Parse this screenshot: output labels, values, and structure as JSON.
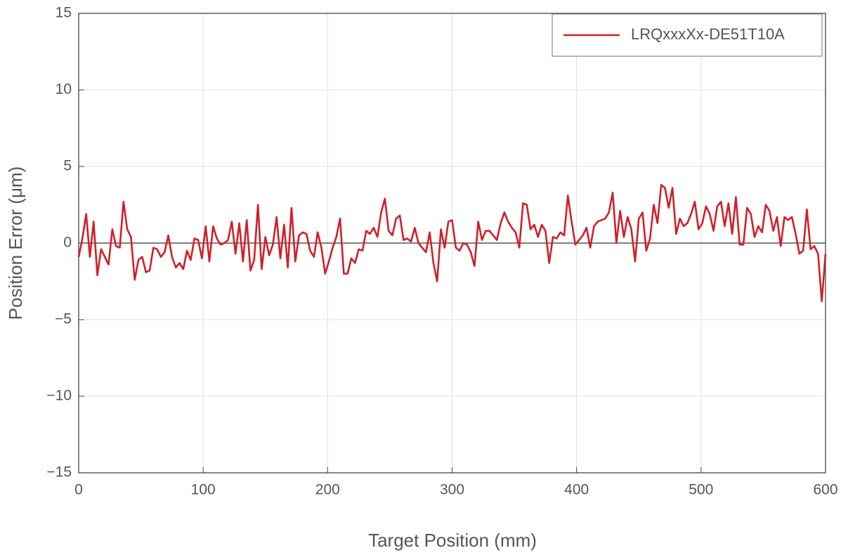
{
  "chart_data": {
    "type": "line",
    "xlabel": "Target Position (mm)",
    "ylabel": "Position Error (μm)",
    "x": [
      0,
      3,
      6,
      9,
      12,
      15,
      18,
      21,
      24,
      27,
      30,
      33,
      36,
      39,
      42,
      45,
      48,
      51,
      54,
      57,
      60,
      63,
      66,
      69,
      72,
      75,
      78,
      81,
      84,
      87,
      90,
      93,
      96,
      99,
      102,
      105,
      108,
      111,
      114,
      117,
      120,
      123,
      126,
      129,
      132,
      135,
      138,
      141,
      144,
      147,
      150,
      153,
      156,
      159,
      162,
      165,
      168,
      171,
      174,
      177,
      180,
      183,
      186,
      189,
      192,
      195,
      198,
      201,
      204,
      207,
      210,
      213,
      216,
      219,
      222,
      225,
      228,
      231,
      234,
      237,
      240,
      243,
      246,
      249,
      252,
      255,
      258,
      261,
      264,
      267,
      270,
      273,
      276,
      279,
      282,
      285,
      288,
      291,
      294,
      297,
      300,
      303,
      306,
      309,
      312,
      315,
      318,
      321,
      324,
      327,
      330,
      333,
      336,
      339,
      342,
      345,
      348,
      351,
      354,
      357,
      360,
      363,
      366,
      369,
      372,
      375,
      378,
      381,
      384,
      387,
      390,
      393,
      396,
      399,
      402,
      405,
      408,
      411,
      414,
      417,
      420,
      423,
      426,
      429,
      432,
      435,
      438,
      441,
      444,
      447,
      450,
      453,
      456,
      459,
      462,
      465,
      468,
      471,
      474,
      477,
      480,
      483,
      486,
      489,
      492,
      495,
      498,
      501,
      504,
      507,
      510,
      513,
      516,
      519,
      522,
      525,
      528,
      531,
      534,
      537,
      540,
      543,
      546,
      549,
      552,
      555,
      558,
      561,
      564,
      567,
      570,
      573,
      576,
      579,
      582,
      585,
      588,
      591,
      594,
      597,
      600
    ],
    "series": [
      {
        "name": "LRQxxxXx-DE51T10A",
        "color": "#d0202a",
        "values": [
          -0.9,
          0.3,
          1.9,
          -0.9,
          1.4,
          -2.1,
          -0.4,
          -0.9,
          -1.4,
          0.9,
          -0.2,
          -0.3,
          2.7,
          0.9,
          0.4,
          -2.4,
          -1.1,
          -0.9,
          -1.9,
          -1.8,
          -0.3,
          -0.4,
          -0.9,
          -0.6,
          0.5,
          -0.9,
          -1.6,
          -1.3,
          -1.7,
          -0.5,
          -1.1,
          0.3,
          0.2,
          -1.0,
          1.1,
          -1.2,
          1.1,
          0.3,
          -0.1,
          0.0,
          0.2,
          1.4,
          -0.7,
          1.3,
          -1.2,
          1.5,
          -1.8,
          -1.1,
          2.5,
          -1.7,
          0.4,
          -0.8,
          -0.1,
          1.7,
          -1.0,
          1.2,
          -1.6,
          2.3,
          -1.2,
          0.5,
          0.7,
          0.6,
          -0.5,
          -0.9,
          0.7,
          -0.3,
          -2.0,
          -1.2,
          -0.3,
          0.4,
          1.6,
          -2.0,
          -2.0,
          -1.0,
          -1.3,
          -0.4,
          -0.5,
          0.8,
          0.6,
          1.0,
          0.4,
          2.0,
          2.9,
          0.8,
          0.5,
          1.6,
          1.8,
          0.2,
          0.3,
          0.1,
          1.0,
          0.0,
          -0.3,
          -0.6,
          0.7,
          -1.3,
          -2.5,
          0.9,
          -0.3,
          1.4,
          1.5,
          -0.3,
          -0.5,
          0.0,
          -0.1,
          -0.6,
          -1.5,
          1.4,
          0.2,
          0.8,
          0.8,
          0.5,
          0.2,
          1.3,
          2.0,
          1.4,
          1.0,
          0.7,
          -0.3,
          2.6,
          2.5,
          0.9,
          1.2,
          0.4,
          1.2,
          0.8,
          -1.3,
          0.4,
          0.3,
          0.7,
          0.5,
          3.1,
          1.4,
          -0.1,
          0.2,
          0.5,
          1.0,
          -0.3,
          1.1,
          1.4,
          1.5,
          1.6,
          2.0,
          3.3,
          0.0,
          2.1,
          0.4,
          1.7,
          0.9,
          -1.2,
          1.6,
          2.0,
          -0.5,
          0.3,
          2.5,
          1.3,
          3.8,
          3.6,
          2.3,
          3.6,
          0.6,
          1.6,
          1.1,
          1.3,
          1.9,
          2.7,
          0.9,
          1.3,
          2.4,
          1.9,
          0.8,
          2.4,
          2.7,
          1.1,
          2.6,
          0.6,
          3.0,
          -0.1,
          -0.1,
          2.3,
          1.9,
          0.4,
          1.1,
          0.7,
          2.5,
          2.1,
          0.8,
          1.7,
          -0.2,
          1.7,
          1.5,
          1.7,
          0.6,
          -0.7,
          -0.5,
          2.2,
          -0.4,
          -0.2,
          -0.7,
          -3.8,
          -0.7
        ]
      }
    ],
    "xlim": [
      0,
      600
    ],
    "xticks": [
      0,
      100,
      200,
      300,
      400,
      500,
      600
    ],
    "ylim": [
      -15,
      15
    ],
    "yticks": [
      {
        "value": -15,
        "label": "−15"
      },
      {
        "value": -10,
        "label": "−10"
      },
      {
        "value": -5,
        "label": "−5"
      },
      0,
      5,
      10,
      15
    ],
    "grid": true,
    "zero_line": true,
    "legend": "upper right"
  }
}
